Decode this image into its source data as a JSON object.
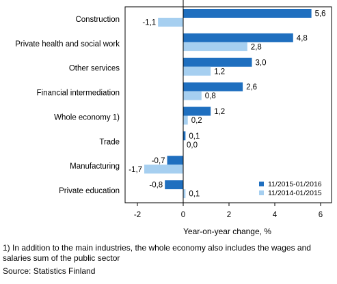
{
  "chart_data": {
    "type": "bar",
    "orientation": "horizontal",
    "categories": [
      "Construction",
      "Private health and social work",
      "Other services",
      "Financial intermediation",
      "Whole economy 1)",
      "Trade",
      "Manufacturing",
      "Private education"
    ],
    "series": [
      {
        "name": "11/2015-01/2016",
        "color": "#1f6fbf",
        "values": [
          5.6,
          4.8,
          3.0,
          2.6,
          1.2,
          0.1,
          -0.7,
          -0.8
        ],
        "labels": [
          "5,6",
          "4,8",
          "3,0",
          "2,6",
          "1,2",
          "0,1",
          "-0,7",
          "-0,8"
        ]
      },
      {
        "name": "11/2014-01/2015",
        "color": "#a6cff0",
        "values": [
          -1.1,
          2.8,
          1.2,
          0.8,
          0.2,
          0.0,
          -1.7,
          0.1
        ],
        "labels": [
          "-1,1",
          "2,8",
          "1,2",
          "0,8",
          "0,2",
          "0,0",
          "-1,7",
          "0,1"
        ]
      }
    ],
    "xlabel": "Year-on-year change, %",
    "xlim": [
      -3,
      6.5
    ],
    "xticks": [
      -2,
      0,
      2,
      4,
      6
    ],
    "grid": false,
    "legend": "bottom-right"
  },
  "footnote": "1) In addition to the main industries, the whole economy also includes the wages and salaries sum of the public sector",
  "source": "Source: Statistics Finland"
}
